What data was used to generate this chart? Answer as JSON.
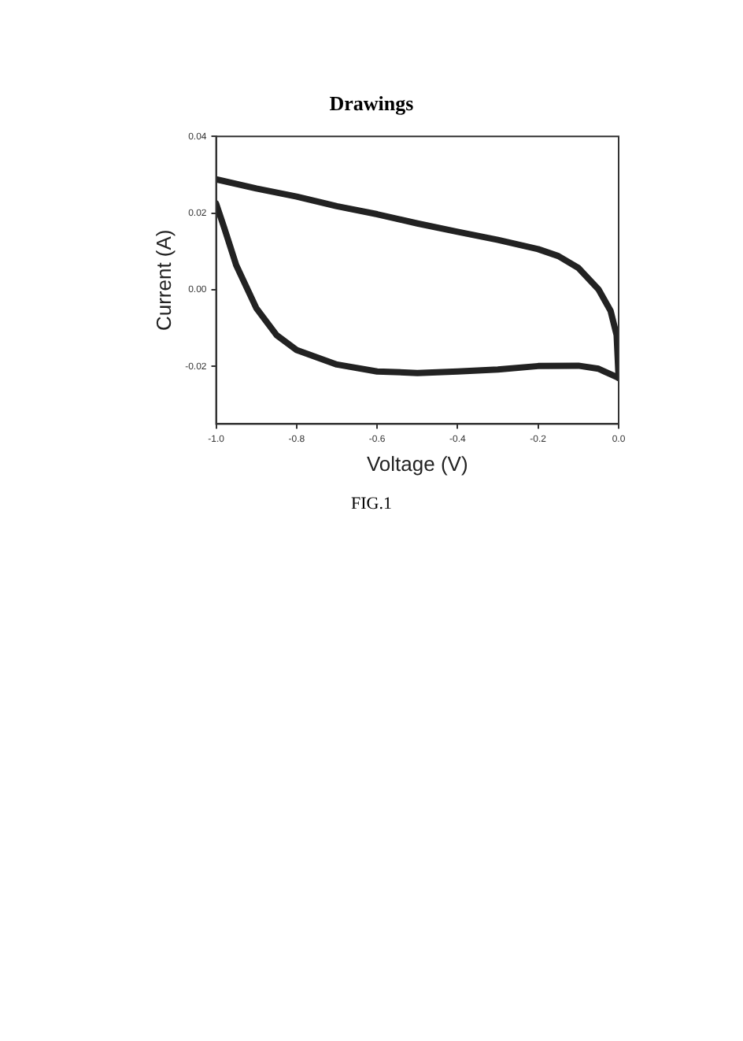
{
  "chart_data": {
    "type": "line",
    "title": "Drawings",
    "xlabel": "Voltage (V)",
    "ylabel": "Current (A)",
    "annotations": [
      "FIG.1"
    ],
    "xlim": [
      -1.0,
      0.0
    ],
    "xticks": [
      {
        "value": -1.0,
        "label": "-1.0"
      },
      {
        "value": -0.8,
        "label": "-0.8"
      },
      {
        "value": -0.6,
        "label": "-0.6"
      },
      {
        "value": -0.4,
        "label": "-0.4"
      },
      {
        "value": -0.2,
        "label": "-0.2"
      },
      {
        "value": 0,
        "label": "0.0"
      }
    ],
    "ylim": [
      -0.035,
      0.04
    ],
    "yticks": [
      {
        "value": -0.02,
        "label": "-0.02"
      },
      {
        "value": 0,
        "label": "0.00"
      },
      {
        "value": 0.02,
        "label": "0.02"
      },
      {
        "value": 0.04,
        "label": "0.04"
      }
    ],
    "grid": false,
    "legend": false,
    "marker": "none",
    "line_style": "solid",
    "series": [
      {
        "color": "#222222",
        "x": [
          -1.0,
          -0.9,
          -0.8,
          -0.7,
          -0.6,
          -0.5,
          -0.4,
          -0.3,
          -0.2,
          -0.15,
          -0.1,
          -0.05,
          -0.02,
          -0.005,
          0.0
        ],
        "values": [
          0.0288,
          0.0264,
          0.0243,
          0.0218,
          0.0197,
          0.0173,
          0.0151,
          0.013,
          0.0106,
          0.0088,
          0.0057,
          0.0001,
          -0.0055,
          -0.0118,
          -0.023
        ]
      },
      {
        "color": "#222222",
        "x": [
          -1.0,
          -0.98,
          -0.95,
          -0.9,
          -0.85,
          -0.8,
          -0.7,
          -0.6,
          -0.5,
          -0.4,
          -0.3,
          -0.2,
          -0.1,
          -0.05,
          0.0
        ],
        "values": [
          0.0225,
          0.0162,
          0.0064,
          -0.0048,
          -0.0118,
          -0.0157,
          -0.0195,
          -0.0213,
          -0.0217,
          -0.0213,
          -0.0208,
          -0.0199,
          -0.0198,
          -0.0206,
          -0.023
        ]
      }
    ]
  }
}
